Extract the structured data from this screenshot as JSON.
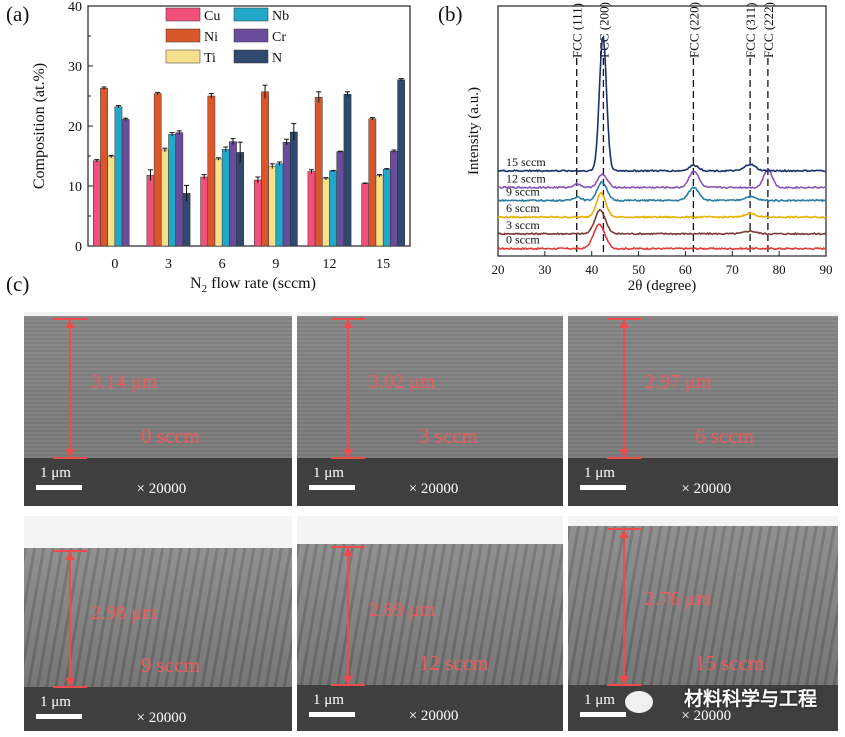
{
  "panels": {
    "a": "(a)",
    "b": "(b)",
    "c": "(c)"
  },
  "chart_data": [
    {
      "type": "bar",
      "panel": "(a)",
      "xlabel_main": "N",
      "xlabel_sub": "2",
      "xlabel_rest": " flow rate (sccm)",
      "ylabel": "Composition (at.%)",
      "categories": [
        "0",
        "3",
        "6",
        "9",
        "12",
        "15"
      ],
      "ylim": [
        0,
        40
      ],
      "yticks": [
        0,
        10,
        20,
        30,
        40
      ],
      "series": [
        {
          "name": "Cu",
          "color": "#f0507a",
          "values": [
            14.2,
            11.8,
            11.5,
            11.0,
            12.4,
            10.4
          ],
          "errors": [
            0.2,
            0.9,
            0.4,
            0.5,
            0.3,
            0.1
          ]
        },
        {
          "name": "Ni",
          "color": "#d9572a",
          "values": [
            26.3,
            25.4,
            25.0,
            25.7,
            24.8,
            21.2
          ],
          "errors": [
            0.2,
            0.2,
            0.4,
            1.1,
            0.9,
            0.2
          ]
        },
        {
          "name": "Ti",
          "color": "#f7e08a",
          "values": [
            14.9,
            16.0,
            14.5,
            13.3,
            11.2,
            11.7
          ],
          "errors": [
            0.2,
            0.3,
            0.2,
            0.4,
            0.2,
            0.2
          ]
        },
        {
          "name": "Nb",
          "color": "#22a9c9",
          "values": [
            23.2,
            18.6,
            16.1,
            13.7,
            12.5,
            12.8
          ],
          "errors": [
            0.2,
            0.3,
            0.4,
            0.3,
            0.1,
            0.1
          ]
        },
        {
          "name": "Cr",
          "color": "#6a4c9c",
          "values": [
            21.1,
            18.9,
            17.4,
            17.3,
            15.7,
            15.8
          ],
          "errors": [
            0.2,
            0.3,
            0.5,
            0.5,
            0.1,
            0.2
          ]
        },
        {
          "name": "N",
          "color": "#2f4a6e",
          "values": [
            0,
            8.8,
            15.6,
            19.0,
            25.3,
            27.7
          ],
          "errors": [
            0,
            1.3,
            1.7,
            1.4,
            0.4,
            0.2
          ]
        }
      ]
    },
    {
      "type": "line",
      "panel": "(b)",
      "xlabel": "2θ (degree)",
      "ylabel": "Intensity (a.u.)",
      "xlim": [
        20,
        90
      ],
      "xticks": [
        20,
        30,
        40,
        50,
        60,
        70,
        80,
        90
      ],
      "peak_markers": [
        {
          "label": "FCC (111)",
          "x": 36.8
        },
        {
          "label": "FCC (200)",
          "x": 42.5
        },
        {
          "label": "FCC (220)",
          "x": 61.7
        },
        {
          "label": "FCC (311)",
          "x": 73.8
        },
        {
          "label": "FCC (222)",
          "x": 77.6
        }
      ],
      "series": [
        {
          "name": "0 sccm",
          "color": "#e23b3b",
          "baseline": 0.4,
          "peaks": [
            [
              41.6,
              1.3,
              1.2
            ]
          ]
        },
        {
          "name": "3 sccm",
          "color": "#7a3a3a",
          "baseline": 1.2,
          "peaks": [
            [
              41.8,
              1.3,
              1.1
            ],
            [
              73.8,
              0.15,
              1.2
            ]
          ]
        },
        {
          "name": "6 sccm",
          "color": "#e8b100",
          "baseline": 2.1,
          "peaks": [
            [
              42.0,
              1.3,
              1.0
            ],
            [
              73.8,
              0.2,
              1.2
            ]
          ]
        },
        {
          "name": "9 sccm",
          "color": "#2a7ea0",
          "baseline": 3.0,
          "peaks": [
            [
              42.2,
              1.0,
              1.0
            ],
            [
              61.8,
              0.7,
              1.1
            ],
            [
              73.8,
              0.2,
              1.2
            ],
            [
              36.9,
              0.2,
              0.8
            ]
          ]
        },
        {
          "name": "12 sccm",
          "color": "#8a55b8",
          "baseline": 3.7,
          "peaks": [
            [
              42.3,
              0.7,
              1.0
            ],
            [
              61.8,
              0.9,
              1.0
            ],
            [
              77.6,
              1.0,
              0.9
            ],
            [
              36.9,
              0.2,
              0.8
            ]
          ]
        },
        {
          "name": "15 sccm",
          "color": "#1d2f6b",
          "baseline": 4.6,
          "peaks": [
            [
              42.4,
              7.3,
              0.75
            ],
            [
              61.8,
              0.3,
              1.0
            ],
            [
              73.8,
              0.35,
              1.1
            ]
          ]
        }
      ]
    }
  ],
  "sem": [
    {
      "thickness": "3.14 μm",
      "flow": "0 sccm",
      "scale": "1 μm",
      "mag": "× 20000"
    },
    {
      "thickness": "3.02 μm",
      "flow": "3 sccm",
      "scale": "1 μm",
      "mag": "× 20000"
    },
    {
      "thickness": "2.97 μm",
      "flow": "6 sccm",
      "scale": "1 μm",
      "mag": "× 20000"
    },
    {
      "thickness": "2.98 μm",
      "flow": "9 sccm",
      "scale": "1 μm",
      "mag": "× 20000"
    },
    {
      "thickness": "2.89 μm",
      "flow": "12 sccm",
      "scale": "1 μm",
      "mag": "× 20000"
    },
    {
      "thickness": "2.76 μm",
      "flow": "15 sccm",
      "scale": "1 μm",
      "mag": "× 20000"
    }
  ],
  "watermark": "材料科学与工程"
}
